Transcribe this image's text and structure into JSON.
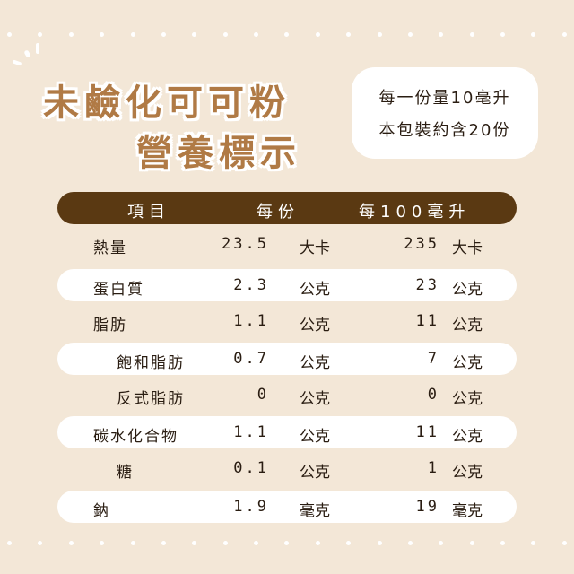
{
  "title": {
    "line1": "未鹼化可可粉",
    "line2": "營養標示"
  },
  "info": {
    "serving": "每一份量10毫升",
    "servings_per_pack": "本包裝約含20份"
  },
  "header": {
    "item": "項目",
    "per_serving": "每份",
    "per_100": "每100毫升"
  },
  "rows": [
    {
      "label": "熱量",
      "v1": "23.5",
      "u1": "大卡",
      "v2": "235",
      "u2": "大卡",
      "indent": false
    },
    {
      "label": "蛋白質",
      "v1": "2.3",
      "u1": "公克",
      "v2": "23",
      "u2": "公克",
      "indent": false
    },
    {
      "label": "脂肪",
      "v1": "1.1",
      "u1": "公克",
      "v2": "11",
      "u2": "公克",
      "indent": false
    },
    {
      "label": "飽和脂肪",
      "v1": "0.7",
      "u1": "公克",
      "v2": "7",
      "u2": "公克",
      "indent": true
    },
    {
      "label": "反式脂肪",
      "v1": "0",
      "u1": "公克",
      "v2": "0",
      "u2": "公克",
      "indent": true
    },
    {
      "label": "碳水化合物",
      "v1": "1.1",
      "u1": "公克",
      "v2": "11",
      "u2": "公克",
      "indent": false
    },
    {
      "label": "糖",
      "v1": "0.1",
      "u1": "公克",
      "v2": "1",
      "u2": "公克",
      "indent": true
    },
    {
      "label": "鈉",
      "v1": "1.9",
      "u1": "毫克",
      "v2": "19",
      "u2": "毫克",
      "indent": false
    }
  ],
  "colors": {
    "background": "#f3e7d7",
    "title": "#b07a45",
    "header": "#5a3912"
  }
}
